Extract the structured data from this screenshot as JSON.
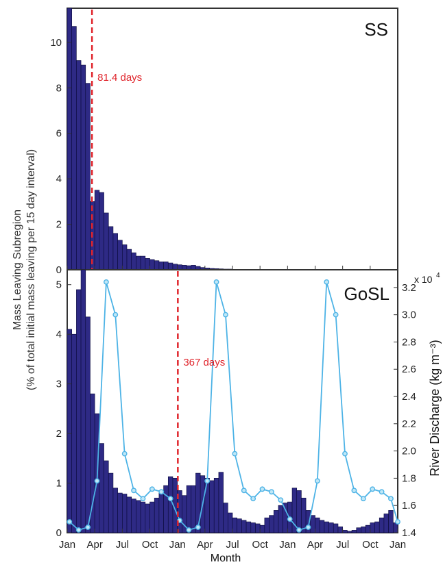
{
  "figure": {
    "ylabel_line1": "Mass Leaving Subregion",
    "ylabel_line2": "(% of total initial mass leaving per 15 day interval)",
    "xlabel": "Month",
    "right_ylabel": "River Discharge (kg m⁻³)",
    "right_multiplier": "x 10",
    "right_multiplier_exp": "4",
    "colors": {
      "bar": "#2e2a85",
      "bar_edge": "#0a0a3a",
      "line": "#4db3e6",
      "marker_fill": "#bfe7f7",
      "vline": "#e0242b",
      "annotation": "#e0242b"
    }
  },
  "chart_data": [
    {
      "type": "bar",
      "panel_label": "SS",
      "ylim": [
        0,
        11.5
      ],
      "yticks": [
        0,
        2,
        4,
        6,
        8,
        10
      ],
      "xlim": [
        0,
        72
      ],
      "xtick_labels": [
        "Jan",
        "Apr",
        "Jul",
        "Oct",
        "Jan",
        "Apr",
        "Jul",
        "Oct",
        "Jan",
        "Apr",
        "Jul",
        "Oct",
        "Jan"
      ],
      "values": [
        11.5,
        10.7,
        9.2,
        9.0,
        8.2,
        3.0,
        3.5,
        3.4,
        2.5,
        1.9,
        1.6,
        1.3,
        1.1,
        0.9,
        0.75,
        0.6,
        0.6,
        0.5,
        0.45,
        0.4,
        0.35,
        0.35,
        0.3,
        0.25,
        0.22,
        0.2,
        0.18,
        0.2,
        0.15,
        0.1,
        0.08,
        0.06,
        0.05,
        0.04,
        0.03,
        0.03,
        0.02,
        0.02,
        0.02,
        0.01,
        0.01,
        0.01,
        0.01,
        0.01,
        0.01,
        0.01,
        0.01,
        0.01,
        0.01,
        0.01,
        0.01,
        0.01,
        0.01,
        0.01,
        0.01,
        0.01,
        0.01,
        0.01,
        0.01,
        0.01,
        0.01,
        0.01,
        0.01,
        0.01,
        0.01,
        0.01,
        0.01,
        0.01,
        0.01,
        0.01,
        0.01,
        0.01
      ],
      "vline_x": 5.4,
      "annotation": "81.4 days"
    },
    {
      "type": "bar+line",
      "panel_label": "GoSL",
      "ylim": [
        0,
        5.3
      ],
      "yticks": [
        0,
        1,
        2,
        3,
        4,
        5
      ],
      "xlim": [
        0,
        72
      ],
      "xtick_labels": [
        "Jan",
        "Apr",
        "Jul",
        "Oct",
        "Jan",
        "Apr",
        "Jul",
        "Oct",
        "Jan",
        "Apr",
        "Jul",
        "Oct",
        "Jan"
      ],
      "values": [
        4.1,
        4.0,
        4.9,
        5.3,
        4.35,
        2.8,
        2.4,
        1.8,
        1.45,
        1.2,
        0.9,
        0.8,
        0.78,
        0.72,
        0.68,
        0.65,
        0.62,
        0.58,
        0.62,
        0.7,
        0.85,
        0.95,
        1.13,
        1.1,
        0.85,
        0.75,
        0.95,
        0.95,
        1.2,
        1.15,
        1.1,
        1.05,
        1.1,
        1.22,
        0.6,
        0.4,
        0.3,
        0.28,
        0.25,
        0.22,
        0.2,
        0.18,
        0.15,
        0.3,
        0.35,
        0.45,
        0.55,
        0.6,
        0.62,
        0.9,
        0.85,
        0.7,
        0.45,
        0.35,
        0.3,
        0.25,
        0.22,
        0.2,
        0.18,
        0.12,
        0.05,
        0.03,
        0.05,
        0.1,
        0.12,
        0.15,
        0.2,
        0.22,
        0.3,
        0.38,
        0.45,
        0.2
      ],
      "vline_x": 24.1,
      "annotation": "367 days",
      "line": {
        "y2lim": [
          1.4,
          3.33
        ],
        "y2ticks": [
          1.4,
          1.6,
          1.8,
          2.0,
          2.2,
          2.4,
          2.6,
          2.8,
          3.0,
          3.2
        ],
        "x": [
          0.5,
          2.5,
          4.5,
          6.5,
          8.5,
          10.5,
          12.5,
          14.5,
          16.5,
          18.5,
          20.5,
          22.5,
          24.5,
          26.5,
          28.5,
          30.5,
          32.5,
          34.5,
          36.5,
          38.5,
          40.5,
          42.5,
          44.5,
          46.5,
          48.5,
          50.5,
          52.5,
          54.5,
          56.5,
          58.5,
          60.5,
          62.5,
          64.5,
          66.5,
          68.5,
          70.5,
          72.0
        ],
        "y": [
          1.48,
          1.42,
          1.44,
          1.78,
          3.24,
          3.0,
          1.98,
          1.71,
          1.65,
          1.72,
          1.7,
          1.65,
          1.49,
          1.42,
          1.44,
          1.78,
          3.24,
          3.0,
          1.98,
          1.71,
          1.65,
          1.72,
          1.7,
          1.64,
          1.5,
          1.42,
          1.44,
          1.78,
          3.24,
          3.0,
          1.98,
          1.71,
          1.65,
          1.72,
          1.7,
          1.65,
          1.48
        ]
      }
    }
  ]
}
